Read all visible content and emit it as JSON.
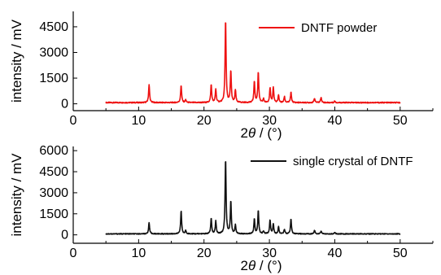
{
  "chart_data": [
    {
      "type": "line",
      "xlabel_prefix": "2",
      "xlabel_symbol": "θ",
      "xlabel_suffix": " / (°)",
      "ylabel": "intensity / mV",
      "xlim": [
        0,
        55
      ],
      "ylim": [
        -400,
        5400
      ],
      "xticks": [
        0,
        10,
        20,
        30,
        40,
        50
      ],
      "yticks": [
        0,
        1500,
        3000,
        4500
      ],
      "legend_position": "top-right",
      "series": [
        {
          "name": "DNTF powder",
          "color": "#ee1111",
          "peaks": [
            [
              11.6,
              1050
            ],
            [
              16.5,
              1020
            ],
            [
              17.2,
              160
            ],
            [
              21.1,
              1050
            ],
            [
              21.8,
              780
            ],
            [
              23.3,
              4850
            ],
            [
              24.1,
              1850
            ],
            [
              24.8,
              720
            ],
            [
              27.7,
              1250
            ],
            [
              28.3,
              1800
            ],
            [
              29.1,
              220
            ],
            [
              30.1,
              850
            ],
            [
              30.6,
              900
            ],
            [
              31.4,
              420
            ],
            [
              32.3,
              350
            ],
            [
              33.3,
              600
            ],
            [
              36.9,
              260
            ],
            [
              37.9,
              320
            ],
            [
              40.0,
              90
            ]
          ],
          "baseline": 70,
          "x_start": 5,
          "x_end": 50
        }
      ]
    },
    {
      "type": "line",
      "xlabel_prefix": "2",
      "xlabel_symbol": "θ",
      "xlabel_suffix": " / (°)",
      "ylabel": "intensity / mV",
      "xlim": [
        0,
        55
      ],
      "ylim": [
        -600,
        6300
      ],
      "xticks": [
        0,
        10,
        20,
        30,
        40,
        50
      ],
      "yticks": [
        0,
        1500,
        3000,
        4500,
        6000
      ],
      "legend_position": "top-right",
      "series": [
        {
          "name": "single crystal of DNTF",
          "color": "#111111",
          "peaks": [
            [
              11.6,
              800
            ],
            [
              16.5,
              1650
            ],
            [
              17.2,
              230
            ],
            [
              21.1,
              1100
            ],
            [
              21.8,
              900
            ],
            [
              23.3,
              5350
            ],
            [
              24.1,
              2300
            ],
            [
              24.8,
              620
            ],
            [
              27.7,
              1050
            ],
            [
              28.3,
              1650
            ],
            [
              29.1,
              200
            ],
            [
              30.1,
              1000
            ],
            [
              30.6,
              700
            ],
            [
              31.4,
              500
            ],
            [
              32.3,
              330
            ],
            [
              33.3,
              1050
            ],
            [
              36.9,
              260
            ],
            [
              37.9,
              200
            ],
            [
              40.0,
              90
            ]
          ],
          "baseline": 70,
          "x_start": 5,
          "x_end": 50
        }
      ]
    }
  ]
}
